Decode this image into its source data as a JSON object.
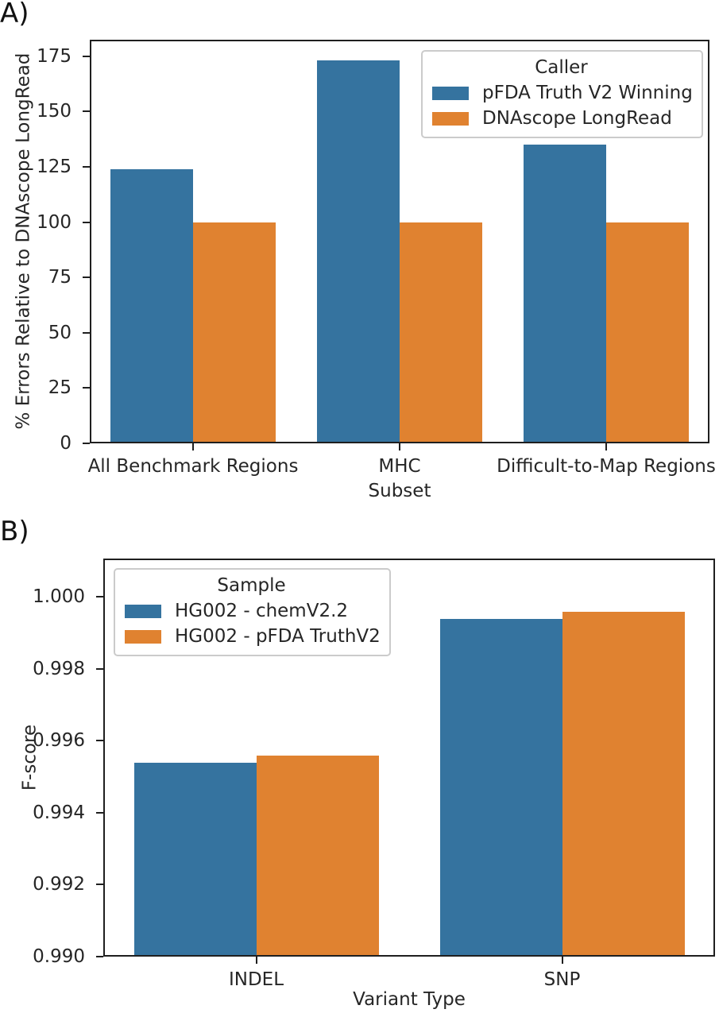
{
  "panel_labels": [
    "A)",
    "B)"
  ],
  "colors": {
    "series_blue": "#35739F",
    "series_orange": "#E08230",
    "axis": "#1f1f1f",
    "text": "#262626",
    "legend_border": "#cbcbcb"
  },
  "chart_data": [
    {
      "type": "bar",
      "panel": "A",
      "title": "",
      "xlabel": "Subset",
      "ylabel": "% Errors Relative to DNAscope LongRead",
      "categories": [
        "All Benchmark Regions",
        "MHC",
        "Difficult-to-Map Regions"
      ],
      "series": [
        {
          "name": "pFDA Truth V2 Winning",
          "color": "#35739F",
          "values": [
            124,
            173,
            135
          ]
        },
        {
          "name": "DNAscope LongRead",
          "color": "#E08230",
          "values": [
            100,
            100,
            100
          ]
        }
      ],
      "legend": {
        "title": "Caller",
        "position": "upper-right"
      },
      "ylim": [
        0,
        182.5
      ],
      "yticks": [
        {
          "value": 0,
          "label": "0"
        },
        {
          "value": 25,
          "label": "25"
        },
        {
          "value": 50,
          "label": "50"
        },
        {
          "value": 75,
          "label": "75"
        },
        {
          "value": 100,
          "label": "100"
        },
        {
          "value": 125,
          "label": "125"
        },
        {
          "value": 150,
          "label": "150"
        },
        {
          "value": 175,
          "label": "175"
        }
      ],
      "grid": false
    },
    {
      "type": "bar",
      "panel": "B",
      "title": "",
      "xlabel": "Variant Type",
      "ylabel": "F-score",
      "categories": [
        "INDEL",
        "SNP"
      ],
      "series": [
        {
          "name": "HG002 - chemV2.2",
          "color": "#35739F",
          "values": [
            0.9954,
            0.9994
          ]
        },
        {
          "name": "HG002 - pFDA TruthV2",
          "color": "#E08230",
          "values": [
            0.9956,
            0.9996
          ]
        }
      ],
      "legend": {
        "title": "Sample",
        "position": "upper-left"
      },
      "ylim": [
        0.99,
        1.00107
      ],
      "yticks": [
        {
          "value": 0.99,
          "label": "0.990"
        },
        {
          "value": 0.992,
          "label": "0.992"
        },
        {
          "value": 0.994,
          "label": "0.994"
        },
        {
          "value": 0.996,
          "label": "0.996"
        },
        {
          "value": 0.998,
          "label": "0.998"
        },
        {
          "value": 1.0,
          "label": "1.000"
        }
      ],
      "grid": false
    }
  ]
}
